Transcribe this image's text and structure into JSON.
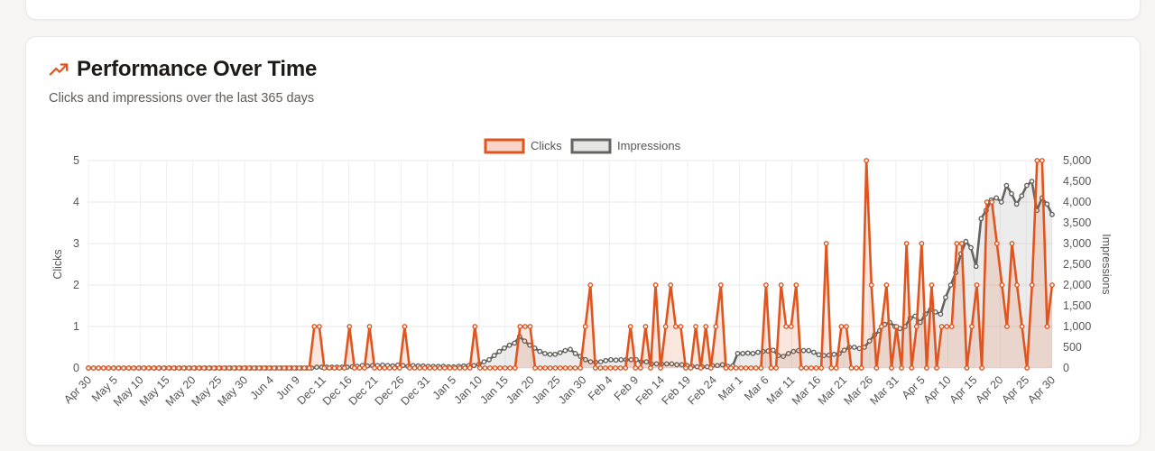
{
  "card": {
    "title": "Performance Over Time",
    "subtitle": "Clicks and impressions over the last 365 days",
    "icon": "trending-up-icon",
    "accent": "#e0541e"
  },
  "chart_data": {
    "type": "line",
    "legend_position": "top-center",
    "grid": true,
    "x_labels": [
      "Apr 30",
      "May 5",
      "May 10",
      "May 15",
      "May 20",
      "May 25",
      "May 30",
      "Jun 4",
      "Jun 9",
      "Dec 11",
      "Dec 16",
      "Dec 21",
      "Dec 26",
      "Dec 31",
      "Jan 5",
      "Jan 10",
      "Jan 15",
      "Jan 20",
      "Jan 25",
      "Jan 30",
      "Feb 4",
      "Feb 9",
      "Feb 14",
      "Feb 19",
      "Feb 24",
      "Mar 1",
      "Mar 6",
      "Mar 11",
      "Mar 16",
      "Mar 21",
      "Mar 26",
      "Mar 31",
      "Apr 5",
      "Apr 10",
      "Apr 15",
      "Apr 20",
      "Apr 25",
      "Apr 30"
    ],
    "y_left": {
      "label": "Clicks",
      "min": 0,
      "max": 5,
      "ticks": [
        "0",
        "1",
        "2",
        "3",
        "4",
        "5"
      ]
    },
    "y_right": {
      "label": "Impressions",
      "min": 0,
      "max": 5000,
      "ticks": [
        "0",
        "500",
        "1,000",
        "1,500",
        "2,000",
        "2,500",
        "3,000",
        "3,500",
        "4,000",
        "4,500",
        "5,000"
      ]
    },
    "series": [
      {
        "name": "Clicks",
        "axis": "left",
        "color": "#e0541e",
        "fill": "rgba(224,84,30,0.15)",
        "values": [
          0,
          0,
          0,
          0,
          0,
          0,
          0,
          0,
          0,
          0,
          0,
          0,
          0,
          0,
          0,
          0,
          0,
          0,
          0,
          0,
          0,
          0,
          0,
          0,
          0,
          0,
          0,
          0,
          0,
          0,
          0,
          0,
          0,
          0,
          0,
          0,
          0,
          0,
          0,
          0,
          0,
          0,
          0,
          0,
          0,
          1,
          1,
          0,
          0,
          0,
          0,
          0,
          1,
          0,
          0,
          0,
          1,
          0,
          0,
          0,
          0,
          0,
          0,
          1,
          0,
          0,
          0,
          0,
          0,
          0,
          0,
          0,
          0,
          0,
          0,
          0,
          0,
          1,
          0,
          0,
          0,
          0,
          0,
          0,
          0,
          0,
          1,
          1,
          1,
          0,
          0,
          0,
          0,
          0,
          0,
          0,
          0,
          0,
          0,
          1,
          2,
          0,
          0,
          0,
          0,
          0,
          0,
          0,
          1,
          0,
          0,
          1,
          0,
          2,
          0,
          1,
          2,
          1,
          1,
          0,
          0,
          1,
          0,
          1,
          0,
          1,
          2,
          0,
          0,
          0,
          0,
          0,
          0,
          0,
          0,
          2,
          0,
          0,
          2,
          1,
          1,
          2,
          0,
          0,
          0,
          0,
          0,
          3,
          0,
          0,
          1,
          1,
          0,
          0,
          0,
          5,
          2,
          0,
          1,
          2,
          0,
          1,
          0,
          3,
          0,
          1,
          3,
          0,
          2,
          0,
          1,
          1,
          1,
          3,
          3,
          0,
          1,
          2,
          0,
          4,
          4,
          3,
          2,
          1,
          3,
          2,
          1,
          0,
          2,
          5,
          5,
          1,
          2
        ]
      },
      {
        "name": "Impressions",
        "axis": "right",
        "color": "#666460",
        "fill": "rgba(150,150,150,0.18)",
        "values": [
          0,
          0,
          0,
          0,
          0,
          0,
          0,
          0,
          0,
          0,
          0,
          0,
          0,
          0,
          0,
          0,
          0,
          0,
          0,
          0,
          0,
          0,
          0,
          0,
          0,
          0,
          0,
          0,
          0,
          0,
          0,
          0,
          0,
          0,
          0,
          0,
          0,
          0,
          0,
          0,
          0,
          0,
          0,
          0,
          0,
          20,
          20,
          20,
          20,
          20,
          20,
          20,
          30,
          40,
          60,
          50,
          60,
          60,
          70,
          60,
          50,
          70,
          60,
          40,
          60,
          50,
          50,
          40,
          40,
          40,
          40,
          30,
          30,
          40,
          50,
          60,
          60,
          90,
          150,
          200,
          300,
          400,
          480,
          550,
          600,
          760,
          650,
          550,
          480,
          400,
          350,
          330,
          330,
          370,
          420,
          450,
          350,
          280,
          200,
          150,
          140,
          150,
          180,
          200,
          190,
          200,
          200,
          200,
          200,
          150,
          150,
          100,
          100,
          100,
          100,
          100,
          80,
          80,
          60,
          40,
          30,
          30,
          30,
          60,
          60,
          80,
          40,
          50,
          350,
          350,
          360,
          350,
          380,
          400,
          410,
          430,
          300,
          280,
          350,
          400,
          420,
          420,
          420,
          380,
          320,
          300,
          310,
          330,
          350,
          430,
          500,
          500,
          470,
          500,
          650,
          800,
          900,
          1050,
          1100,
          1000,
          950,
          1000,
          1200,
          1250,
          1100,
          1300,
          1400,
          1350,
          1300,
          1700,
          2000,
          2300,
          2750,
          3050,
          2900,
          2450,
          3600,
          3800,
          4050,
          4100,
          4000,
          4400,
          4200,
          3950,
          4150,
          4400,
          4500,
          3800,
          4100,
          3950,
          3700
        ]
      }
    ]
  }
}
